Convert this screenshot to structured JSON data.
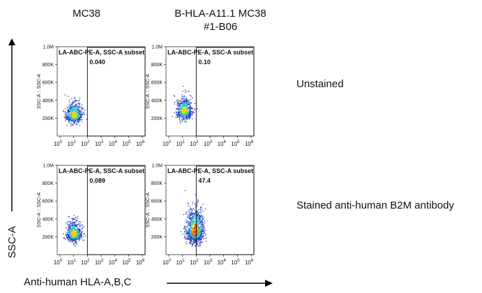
{
  "columns": [
    "MC38",
    "B-HLA-A11.1 MC38\n#1-B06"
  ],
  "column_labels": {
    "c1": "MC38",
    "c2_line1": "B-HLA-A11.1 MC38",
    "c2_line2": "#1-B06"
  },
  "rows": [
    "Unstained",
    "Stained anti-human B2M antibody"
  ],
  "y_axis_label": "SSC-A",
  "x_axis_label": "Anti-human HLA-A,B,C",
  "panel_y_axis_label": "SSC-A :: SSC-A",
  "y_ticks": [
    "200K",
    "400K",
    "600K",
    "800K",
    "1.0M"
  ],
  "x_ticks": [
    "0",
    "1",
    "2",
    "3",
    "4",
    "5",
    "6"
  ],
  "x_tick_base": "10",
  "gate_name": "LA-ABC-PE-A, SSC-A subset",
  "colors": {
    "low_density": "#1f3fb5",
    "mid_density": "#22c4d6",
    "high_density": "#f5d000",
    "peak_density": "#e83a1a",
    "gate_line": "#000000"
  },
  "chart_data": [
    {
      "type": "scatter",
      "subtype": "flow-cytometry-density",
      "column": "MC38",
      "row": "Unstained",
      "gate_percent": "0.040",
      "gate_x_threshold_log10": 2.0,
      "ylim": [
        0,
        1000000
      ],
      "xlim_log10": [
        -0.2,
        6.2
      ],
      "population_center": {
        "x_log10": 1.0,
        "y": 230000
      }
    },
    {
      "type": "scatter",
      "subtype": "flow-cytometry-density",
      "column": "B-HLA-A11.1 MC38 #1-B06",
      "row": "Unstained",
      "gate_percent": "0.10",
      "gate_x_threshold_log10": 2.0,
      "ylim": [
        0,
        1000000
      ],
      "xlim_log10": [
        -0.2,
        6.2
      ],
      "population_center": {
        "x_log10": 1.1,
        "y": 280000
      }
    },
    {
      "type": "scatter",
      "subtype": "flow-cytometry-density",
      "column": "MC38",
      "row": "Stained anti-human B2M antibody",
      "gate_percent": "0.089",
      "gate_x_threshold_log10": 2.0,
      "ylim": [
        0,
        1000000
      ],
      "xlim_log10": [
        -0.2,
        6.2
      ],
      "population_center": {
        "x_log10": 1.0,
        "y": 230000
      }
    },
    {
      "type": "scatter",
      "subtype": "flow-cytometry-density",
      "column": "B-HLA-A11.1 MC38 #1-B06",
      "row": "Stained anti-human B2M antibody",
      "gate_percent": "47.4",
      "gate_x_threshold_log10": 2.0,
      "ylim": [
        0,
        1000000
      ],
      "xlim_log10": [
        -0.2,
        6.2
      ],
      "population_center": {
        "x_log10": 1.9,
        "y": 270000
      }
    }
  ]
}
